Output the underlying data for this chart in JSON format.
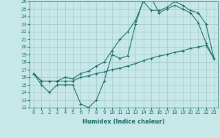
{
  "title": "",
  "xlabel": "Humidex (Indice chaleur)",
  "bg_color": "#c8e8e8",
  "grid_color": "#a0c8c8",
  "line_color": "#1a6b6b",
  "xlim": [
    -0.5,
    23.5
  ],
  "ylim": [
    12,
    26
  ],
  "xticks": [
    0,
    1,
    2,
    3,
    4,
    5,
    6,
    7,
    8,
    9,
    10,
    11,
    12,
    13,
    14,
    15,
    16,
    17,
    18,
    19,
    20,
    21,
    22,
    23
  ],
  "yticks": [
    12,
    13,
    14,
    15,
    16,
    17,
    18,
    19,
    20,
    21,
    22,
    23,
    24,
    25,
    26
  ],
  "line1_x": [
    0,
    1,
    2,
    3,
    4,
    5,
    6,
    7,
    8,
    9,
    10,
    11,
    12,
    13,
    14,
    15,
    16,
    17,
    18,
    19,
    20,
    21,
    22,
    23
  ],
  "line1_y": [
    16.5,
    15.0,
    14.0,
    15.0,
    15.0,
    15.0,
    12.5,
    12.0,
    13.0,
    15.5,
    19.0,
    18.5,
    18.8,
    23.0,
    26.2,
    26.5,
    24.5,
    25.0,
    25.5,
    25.0,
    24.5,
    23.2,
    20.5,
    18.5
  ],
  "line2_x": [
    0,
    1,
    2,
    3,
    4,
    5,
    6,
    7,
    8,
    9,
    10,
    11,
    12,
    13,
    14,
    15,
    16,
    17,
    18,
    19,
    20,
    21,
    22,
    23
  ],
  "line2_y": [
    16.5,
    15.5,
    15.5,
    15.5,
    15.5,
    15.5,
    16.0,
    16.2,
    16.5,
    16.7,
    17.0,
    17.2,
    17.5,
    17.8,
    18.2,
    18.5,
    18.8,
    19.0,
    19.3,
    19.5,
    19.8,
    20.0,
    20.2,
    18.5
  ],
  "line3_x": [
    0,
    1,
    2,
    3,
    4,
    5,
    6,
    7,
    8,
    9,
    10,
    11,
    12,
    13,
    14,
    15,
    16,
    17,
    18,
    19,
    20,
    21,
    22,
    23
  ],
  "line3_y": [
    16.5,
    15.5,
    15.5,
    15.5,
    16.0,
    15.8,
    16.5,
    16.8,
    17.5,
    18.0,
    19.5,
    21.0,
    22.0,
    23.5,
    26.0,
    24.8,
    24.8,
    25.2,
    26.0,
    25.5,
    24.8,
    24.5,
    23.0,
    18.5
  ],
  "xlabel_fontsize": 6,
  "tick_fontsize": 5
}
